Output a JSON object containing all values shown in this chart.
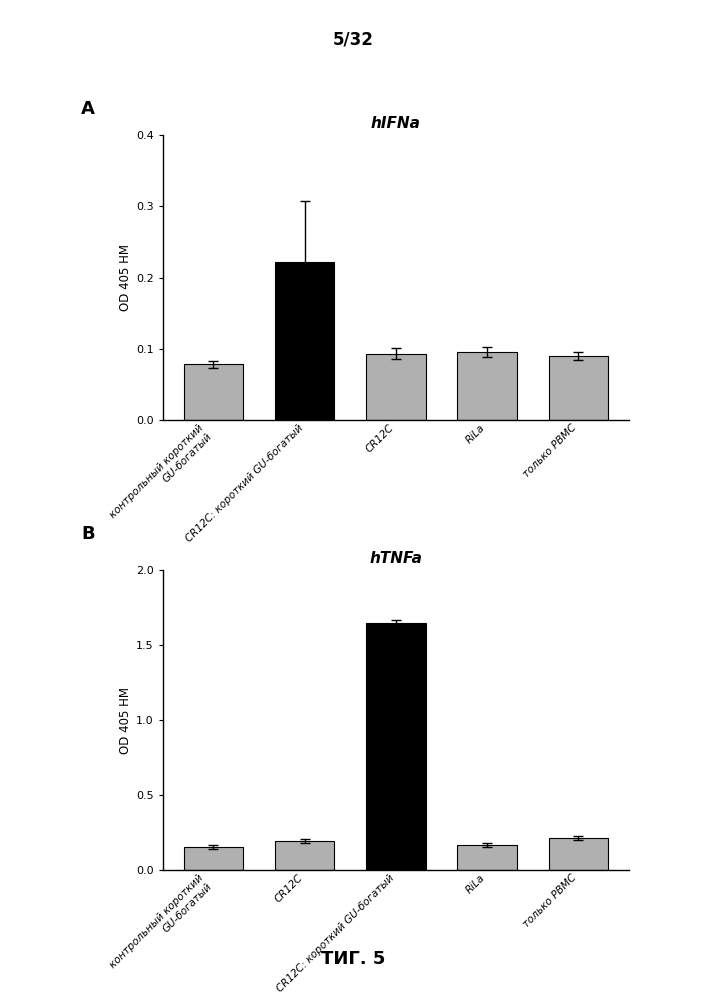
{
  "page_label": "5/32",
  "fig_label": "ΤИГ. 5",
  "panel_a_label": "A",
  "panel_b_label": "B",
  "chart_a": {
    "title": "hIFNa",
    "ylabel": "OD 405 НМ",
    "ylim": [
      0,
      0.4
    ],
    "yticks": [
      0.0,
      0.1,
      0.2,
      0.3,
      0.4
    ],
    "categories": [
      "контрольный короткий\nGU-богатый",
      "CR12C: короткий GU-богатый",
      "CR12C",
      "RiLa",
      "только PBMC"
    ],
    "values": [
      0.078,
      0.222,
      0.093,
      0.095,
      0.09
    ],
    "errors": [
      0.005,
      0.085,
      0.008,
      0.007,
      0.006
    ],
    "colors": [
      "#b0b0b0",
      "#000000",
      "#b0b0b0",
      "#b0b0b0",
      "#b0b0b0"
    ]
  },
  "chart_b": {
    "title": "hTNFa",
    "ylabel": "OD 405 НМ",
    "ylim": [
      0,
      2.0
    ],
    "yticks": [
      0.0,
      0.5,
      1.0,
      1.5,
      2.0
    ],
    "categories": [
      "контрольный короткий\nGU-богатый",
      "CR12C",
      "CR12C: короткий GU-богатый",
      "RiLa",
      "только PBMC"
    ],
    "values": [
      0.155,
      0.195,
      1.65,
      0.165,
      0.215
    ],
    "errors": [
      0.012,
      0.015,
      0.02,
      0.012,
      0.015
    ],
    "colors": [
      "#b0b0b0",
      "#b0b0b0",
      "#000000",
      "#b0b0b0",
      "#b0b0b0"
    ]
  }
}
